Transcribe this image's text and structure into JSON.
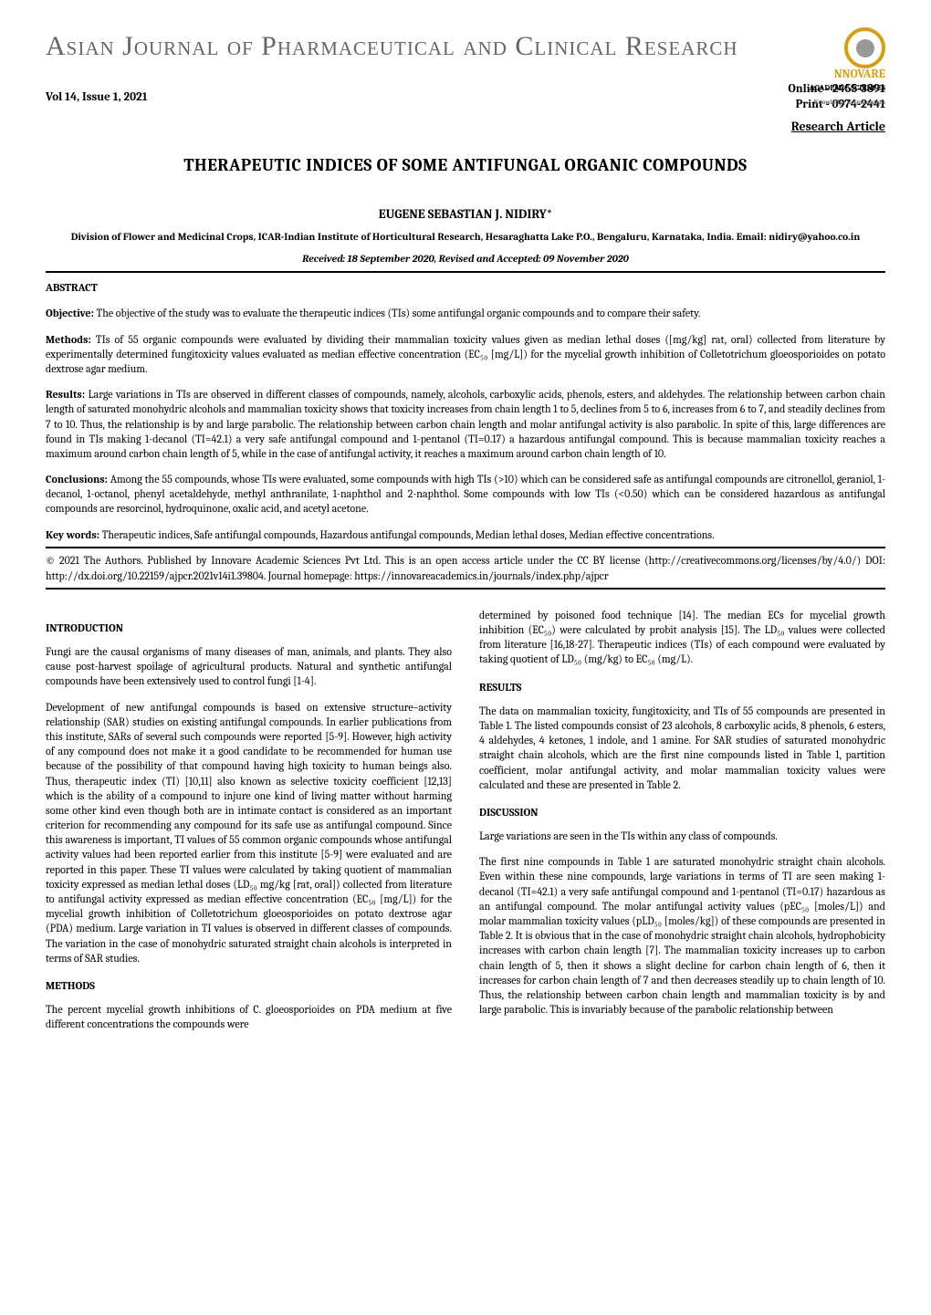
{
  "journal_name": "Asian Journal of Pharmaceutical and Clinical Research",
  "logo": {
    "line1": "NNOVARE",
    "line2": "ACADEMIC SCIENCES",
    "tagline": "Knowledge to Innovation"
  },
  "issue": {
    "vol": "Vol 14, Issue 1, 2021",
    "online": "Online - 2455-3891",
    "print": "Print - 0974-2441",
    "type": "Research Article"
  },
  "title": "THERAPEUTIC INDICES OF SOME ANTIFUNGAL ORGANIC COMPOUNDS",
  "author": "EUGENE SEBASTIAN J. NIDIRY*",
  "affiliation": "Division of Flower and Medicinal Crops, ICAR-Indian Institute of Horticultural Research, Hesaraghatta Lake P.O., Bengaluru, Karnataka, India. Email: nidiry@yahoo.co.in",
  "dates": "Received: 18 September 2020, Revised and Accepted: 09 November 2020",
  "abstract": {
    "label": "ABSTRACT",
    "objective_label": "Objective:",
    "objective": " The objective of the study was to evaluate the therapeutic indices (TIs) some antifungal organic compounds and to compare their safety.",
    "methods_label": "Methods:",
    "methods": " TIs of 55 organic compounds were evaluated by dividing their mammalian toxicity values given as median lethal doses ([mg/kg] rat, oral) collected from literature by experimentally determined fungitoxicity values evaluated as median effective concentration (EC₅₀ [mg/L]) for the mycelial growth inhibition of Colletotrichum gloeosporioides on potato dextrose agar medium.",
    "results_label": "Results:",
    "results": " Large variations in TIs are observed in different classes of compounds, namely, alcohols, carboxylic acids, phenols, esters, and aldehydes. The relationship between carbon chain length of saturated monohydric alcohols and mammalian toxicity shows that toxicity increases from chain length 1 to 5, declines from 5 to 6, increases from 6 to 7, and steadily declines from 7 to 10. Thus, the relationship is by and large parabolic. The relationship between carbon chain length and molar antifungal activity is also parabolic. In spite of this, large differences are found in TIs making 1-decanol (TI=42.1) a very safe antifungal compound and 1-pentanol (TI=0.17) a hazardous antifungal compound. This is because mammalian toxicity reaches a maximum around carbon chain length of 5, while in the case of antifungal activity, it reaches a maximum around carbon chain length of 10.",
    "conclusions_label": "Conclusions:",
    "conclusions": " Among the 55 compounds, whose TIs were evaluated, some compounds with high TIs (>10) which can be considered safe as antifungal compounds are citronellol, geraniol, 1-decanol, 1-octanol, phenyl acetaldehyde, methyl anthranilate, 1-naphthol and 2-naphthol. Some compounds with low TIs (<0.50) which can be considered hazardous as antifungal compounds are resorcinol, hydroquinone, oxalic acid, and acetyl acetone.",
    "keywords_label": "Key words:",
    "keywords": " Therapeutic indices, Safe antifungal compounds, Hazardous antifungal compounds, Median lethal doses, Median effective concentrations."
  },
  "license": "© 2021 The Authors. Published by Innovare Academic Sciences Pvt Ltd. This is an open access article under the CC BY license (http://creativecommons.org/licenses/by/4.0/) DOI: http://dx.doi.org/10.22159/ajpcr.2021v14i1.39804. Journal homepage: https://innovareacademics.in/journals/index.php/ajpcr",
  "body": {
    "intro_head": "INTRODUCTION",
    "intro_p1": "Fungi are the causal organisms of many diseases of man, animals, and plants. They also cause post-harvest spoilage of agricultural products. Natural and synthetic antifungal compounds have been extensively used to control fungi [1-4].",
    "intro_p2": "Development of new antifungal compounds is based on extensive structure–activity relationship (SAR) studies on existing antifungal compounds. In earlier publications from this institute, SARs of several such compounds were reported [5-9]. However, high activity of any compound does not make it a good candidate to be recommended for human use because of the possibility of that compound having high toxicity to human beings also. Thus, therapeutic index (TI) [10,11] also known as selective toxicity coefficient [12,13] which is the ability of a compound to injure one kind of living matter without harming some other kind even though both are in intimate contact is considered as an important criterion for recommending any compound for its safe use as antifungal compound. Since this awareness is important, TI values of 55 common organic compounds whose antifungal activity values had been reported earlier from this institute [5-9] were evaluated and are reported in this paper. These TI values were calculated by taking quotient of mammalian toxicity expressed as median lethal doses (LD₅₀ mg/kg [rat, oral]) collected from literature to antifungal activity expressed as median effective concentration (EC₅₀ [mg/L]) for the mycelial growth inhibition of Colletotrichum gloeosporioides on potato dextrose agar (PDA) medium. Large variation in TI values is observed in different classes of compounds. The variation in the case of monohydric saturated straight chain alcohols is interpreted in terms of SAR studies.",
    "methods_head": "METHODS",
    "methods_p1": "The percent mycelial growth inhibitions of C. gloeosporioides on PDA medium at five different concentrations the compounds were",
    "col2_p1": "determined by poisoned food technique [14]. The median ECs for mycelial growth inhibition (EC₅₀) were calculated by probit analysis [15]. The LD₅₀ values were collected from literature [16,18-27]. Therapeutic indices (TIs) of each compound were evaluated by taking quotient of LD₅₀ (mg/kg) to EC₅₀ (mg/L).",
    "results_head": "RESULTS",
    "results_p1": "The data on mammalian toxicity, fungitoxicity, and TIs of 55 compounds are presented in Table 1. The listed compounds consist of 23 alcohols, 8 carboxylic acids, 8 phenols, 6 esters, 4 aldehydes, 4 ketones, 1 indole, and 1 amine. For SAR studies of saturated monohydric straight chain alcohols, which are the first nine compounds listed in Table 1, partition coefficient, molar antifungal activity, and molar mammalian toxicity values were calculated and these are presented in Table 2.",
    "discussion_head": "DISCUSSION",
    "discussion_p1": "Large variations are seen in the TIs within any class of compounds.",
    "discussion_p2": "The first nine compounds in Table 1 are saturated monohydric straight chain alcohols. Even within these nine compounds, large variations in terms of TI are seen making 1-decanol (TI=42.1) a very safe antifungal compound and 1-pentanol (TI=0.17) hazardous as an antifungal compound. The molar antifungal activity values (pEC₅₀ [moles/L]) and molar mammalian toxicity values (pLD₅₀ [moles/kg]) of these compounds are presented in Table 2. It is obvious that in the case of monohydric straight chain alcohols, hydrophobicity increases with carbon chain length [7]. The mammalian toxicity increases up to carbon chain length of 5, then it shows a slight decline for carbon chain length of 6, then it increases for carbon chain length of 7 and then decreases steadily up to chain length of 10. Thus, the relationship between carbon chain length and mammalian toxicity is by and large parabolic. This is invariably because of the parabolic relationship between"
  }
}
